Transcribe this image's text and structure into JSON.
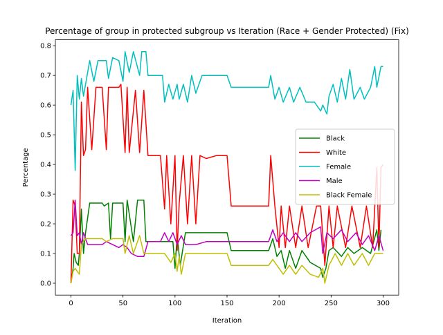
{
  "chart_data": {
    "type": "line",
    "title": "Percentage of group in protected subgroup vs Iteration (Race + Gender Protected) (Fix)",
    "xlabel": "Iteration",
    "ylabel": "Percentage",
    "xlim": [
      -15,
      315
    ],
    "ylim": [
      -0.04,
      0.82
    ],
    "xticks": [
      0,
      50,
      100,
      150,
      200,
      250,
      300
    ],
    "yticks": [
      0.0,
      0.1,
      0.2,
      0.3,
      0.4,
      0.5,
      0.6,
      0.7,
      0.8
    ],
    "xtick_labels": [
      "0",
      "50",
      "100",
      "150",
      "200",
      "250",
      "300"
    ],
    "ytick_labels": [
      "0.0",
      "0.1",
      "0.2",
      "0.3",
      "0.4",
      "0.5",
      "0.6",
      "0.7",
      "0.8"
    ],
    "grid": false,
    "legend_position": "center-right",
    "series": [
      {
        "name": "Black",
        "color": "#008000",
        "points": [
          [
            0,
            0.0
          ],
          [
            2,
            0.05
          ],
          [
            3,
            0.1
          ],
          [
            5,
            0.07
          ],
          [
            7,
            0.06
          ],
          [
            8,
            0.1
          ],
          [
            10,
            0.25
          ],
          [
            12,
            0.1
          ],
          [
            14,
            0.17
          ],
          [
            18,
            0.27
          ],
          [
            30,
            0.27
          ],
          [
            32,
            0.26
          ],
          [
            36,
            0.27
          ],
          [
            38,
            0.15
          ],
          [
            40,
            0.27
          ],
          [
            50,
            0.27
          ],
          [
            52,
            0.14
          ],
          [
            54,
            0.28
          ],
          [
            60,
            0.14
          ],
          [
            64,
            0.28
          ],
          [
            70,
            0.28
          ],
          [
            72,
            0.14
          ],
          [
            80,
            0.14
          ],
          [
            90,
            0.14
          ],
          [
            98,
            0.14
          ],
          [
            100,
            0.05
          ],
          [
            102,
            0.16
          ],
          [
            105,
            0.06
          ],
          [
            110,
            0.17
          ],
          [
            120,
            0.17
          ],
          [
            130,
            0.17
          ],
          [
            150,
            0.17
          ],
          [
            154,
            0.11
          ],
          [
            180,
            0.11
          ],
          [
            190,
            0.11
          ],
          [
            194,
            0.15
          ],
          [
            198,
            0.09
          ],
          [
            202,
            0.11
          ],
          [
            206,
            0.05
          ],
          [
            210,
            0.11
          ],
          [
            216,
            0.05
          ],
          [
            222,
            0.11
          ],
          [
            230,
            0.07
          ],
          [
            240,
            0.05
          ],
          [
            242,
            0.02
          ],
          [
            245,
            0.05
          ],
          [
            248,
            0.11
          ],
          [
            252,
            0.12
          ],
          [
            260,
            0.09
          ],
          [
            266,
            0.12
          ],
          [
            272,
            0.1
          ],
          [
            280,
            0.12
          ],
          [
            288,
            0.1
          ],
          [
            294,
            0.18
          ],
          [
            296,
            0.11
          ],
          [
            298,
            0.18
          ]
        ]
      },
      {
        "name": "White",
        "color": "#ff0000",
        "points": [
          [
            0,
            0.0
          ],
          [
            2,
            0.28
          ],
          [
            4,
            0.26
          ],
          [
            6,
            0.1
          ],
          [
            8,
            0.1
          ],
          [
            10,
            0.61
          ],
          [
            12,
            0.43
          ],
          [
            14,
            0.45
          ],
          [
            16,
            0.66
          ],
          [
            20,
            0.45
          ],
          [
            24,
            0.66
          ],
          [
            30,
            0.66
          ],
          [
            34,
            0.45
          ],
          [
            36,
            0.66
          ],
          [
            46,
            0.66
          ],
          [
            48,
            0.67
          ],
          [
            52,
            0.44
          ],
          [
            54,
            0.66
          ],
          [
            56,
            0.44
          ],
          [
            62,
            0.65
          ],
          [
            66,
            0.44
          ],
          [
            70,
            0.65
          ],
          [
            74,
            0.43
          ],
          [
            86,
            0.43
          ],
          [
            90,
            0.25
          ],
          [
            92,
            0.43
          ],
          [
            96,
            0.2
          ],
          [
            100,
            0.43
          ],
          [
            102,
            0.11
          ],
          [
            104,
            0.27
          ],
          [
            108,
            0.43
          ],
          [
            112,
            0.2
          ],
          [
            116,
            0.43
          ],
          [
            120,
            0.2
          ],
          [
            124,
            0.43
          ],
          [
            130,
            0.42
          ],
          [
            140,
            0.43
          ],
          [
            150,
            0.43
          ],
          [
            154,
            0.26
          ],
          [
            170,
            0.26
          ],
          [
            180,
            0.26
          ],
          [
            190,
            0.26
          ],
          [
            192,
            0.43
          ],
          [
            196,
            0.26
          ],
          [
            200,
            0.12
          ],
          [
            202,
            0.26
          ],
          [
            206,
            0.12
          ],
          [
            210,
            0.26
          ],
          [
            216,
            0.12
          ],
          [
            222,
            0.26
          ],
          [
            228,
            0.12
          ],
          [
            236,
            0.26
          ],
          [
            240,
            0.26
          ],
          [
            244,
            0.06
          ],
          [
            248,
            0.26
          ],
          [
            252,
            0.12
          ],
          [
            256,
            0.26
          ],
          [
            264,
            0.12
          ],
          [
            270,
            0.26
          ],
          [
            278,
            0.12
          ],
          [
            284,
            0.26
          ],
          [
            290,
            0.12
          ],
          [
            294,
            0.39
          ],
          [
            296,
            0.12
          ],
          [
            298,
            0.39
          ],
          [
            300,
            0.4
          ]
        ]
      },
      {
        "name": "Female",
        "color": "#00bfbf",
        "points": [
          [
            0,
            0.6
          ],
          [
            2,
            0.65
          ],
          [
            4,
            0.38
          ],
          [
            6,
            0.7
          ],
          [
            8,
            0.62
          ],
          [
            10,
            0.69
          ],
          [
            12,
            0.63
          ],
          [
            14,
            0.67
          ],
          [
            18,
            0.75
          ],
          [
            22,
            0.68
          ],
          [
            26,
            0.75
          ],
          [
            34,
            0.75
          ],
          [
            36,
            0.69
          ],
          [
            40,
            0.76
          ],
          [
            46,
            0.75
          ],
          [
            50,
            0.68
          ],
          [
            52,
            0.78
          ],
          [
            56,
            0.71
          ],
          [
            60,
            0.78
          ],
          [
            66,
            0.7
          ],
          [
            68,
            0.78
          ],
          [
            72,
            0.78
          ],
          [
            74,
            0.7
          ],
          [
            88,
            0.7
          ],
          [
            90,
            0.61
          ],
          [
            94,
            0.67
          ],
          [
            98,
            0.62
          ],
          [
            102,
            0.67
          ],
          [
            104,
            0.62
          ],
          [
            108,
            0.67
          ],
          [
            112,
            0.61
          ],
          [
            116,
            0.7
          ],
          [
            120,
            0.64
          ],
          [
            126,
            0.7
          ],
          [
            150,
            0.7
          ],
          [
            154,
            0.66
          ],
          [
            170,
            0.66
          ],
          [
            190,
            0.66
          ],
          [
            192,
            0.7
          ],
          [
            196,
            0.62
          ],
          [
            200,
            0.66
          ],
          [
            204,
            0.61
          ],
          [
            210,
            0.66
          ],
          [
            214,
            0.61
          ],
          [
            220,
            0.66
          ],
          [
            226,
            0.61
          ],
          [
            234,
            0.61
          ],
          [
            238,
            0.59
          ],
          [
            240,
            0.58
          ],
          [
            242,
            0.6
          ],
          [
            246,
            0.57
          ],
          [
            248,
            0.63
          ],
          [
            252,
            0.67
          ],
          [
            256,
            0.61
          ],
          [
            260,
            0.69
          ],
          [
            264,
            0.62
          ],
          [
            268,
            0.72
          ],
          [
            272,
            0.62
          ],
          [
            278,
            0.66
          ],
          [
            282,
            0.62
          ],
          [
            288,
            0.66
          ],
          [
            292,
            0.73
          ],
          [
            294,
            0.66
          ],
          [
            298,
            0.73
          ],
          [
            300,
            0.73
          ]
        ]
      },
      {
        "name": "Male",
        "color": "#bf00bf",
        "points": [
          [
            0,
            0.16
          ],
          [
            2,
            0.17
          ],
          [
            4,
            0.28
          ],
          [
            6,
            0.16
          ],
          [
            8,
            0.17
          ],
          [
            10,
            0.13
          ],
          [
            12,
            0.17
          ],
          [
            16,
            0.13
          ],
          [
            20,
            0.13
          ],
          [
            30,
            0.13
          ],
          [
            34,
            0.14
          ],
          [
            40,
            0.13
          ],
          [
            46,
            0.12
          ],
          [
            50,
            0.13
          ],
          [
            54,
            0.12
          ],
          [
            58,
            0.1
          ],
          [
            64,
            0.09
          ],
          [
            70,
            0.09
          ],
          [
            74,
            0.14
          ],
          [
            86,
            0.14
          ],
          [
            90,
            0.17
          ],
          [
            94,
            0.14
          ],
          [
            98,
            0.17
          ],
          [
            102,
            0.13
          ],
          [
            106,
            0.16
          ],
          [
            110,
            0.13
          ],
          [
            120,
            0.13
          ],
          [
            130,
            0.14
          ],
          [
            140,
            0.14
          ],
          [
            150,
            0.14
          ],
          [
            154,
            0.14
          ],
          [
            170,
            0.14
          ],
          [
            190,
            0.14
          ],
          [
            194,
            0.18
          ],
          [
            198,
            0.14
          ],
          [
            204,
            0.17
          ],
          [
            210,
            0.14
          ],
          [
            216,
            0.17
          ],
          [
            222,
            0.14
          ],
          [
            230,
            0.17
          ],
          [
            240,
            0.19
          ],
          [
            242,
            0.1
          ],
          [
            246,
            0.17
          ],
          [
            252,
            0.15
          ],
          [
            260,
            0.18
          ],
          [
            266,
            0.14
          ],
          [
            274,
            0.17
          ],
          [
            280,
            0.13
          ],
          [
            286,
            0.16
          ],
          [
            292,
            0.11
          ],
          [
            296,
            0.16
          ],
          [
            300,
            0.11
          ]
        ]
      },
      {
        "name": "Black Female",
        "color": "#bfbf00",
        "points": [
          [
            0,
            0.0
          ],
          [
            2,
            0.04
          ],
          [
            4,
            0.05
          ],
          [
            6,
            0.04
          ],
          [
            8,
            0.03
          ],
          [
            10,
            0.13
          ],
          [
            14,
            0.15
          ],
          [
            30,
            0.15
          ],
          [
            34,
            0.14
          ],
          [
            40,
            0.15
          ],
          [
            50,
            0.15
          ],
          [
            52,
            0.1
          ],
          [
            56,
            0.16
          ],
          [
            60,
            0.1
          ],
          [
            66,
            0.16
          ],
          [
            70,
            0.1
          ],
          [
            74,
            0.1
          ],
          [
            80,
            0.1
          ],
          [
            90,
            0.1
          ],
          [
            96,
            0.07
          ],
          [
            100,
            0.1
          ],
          [
            102,
            0.04
          ],
          [
            104,
            0.09
          ],
          [
            106,
            0.03
          ],
          [
            110,
            0.1
          ],
          [
            120,
            0.1
          ],
          [
            140,
            0.1
          ],
          [
            150,
            0.1
          ],
          [
            154,
            0.06
          ],
          [
            170,
            0.06
          ],
          [
            190,
            0.06
          ],
          [
            194,
            0.08
          ],
          [
            198,
            0.06
          ],
          [
            204,
            0.03
          ],
          [
            210,
            0.06
          ],
          [
            216,
            0.03
          ],
          [
            222,
            0.06
          ],
          [
            230,
            0.03
          ],
          [
            238,
            0.02
          ],
          [
            242,
            0.05
          ],
          [
            244,
            0.0
          ],
          [
            248,
            0.06
          ],
          [
            254,
            0.1
          ],
          [
            260,
            0.06
          ],
          [
            266,
            0.1
          ],
          [
            272,
            0.06
          ],
          [
            280,
            0.1
          ],
          [
            286,
            0.06
          ],
          [
            292,
            0.1
          ],
          [
            296,
            0.1
          ],
          [
            300,
            0.1
          ]
        ]
      }
    ]
  }
}
